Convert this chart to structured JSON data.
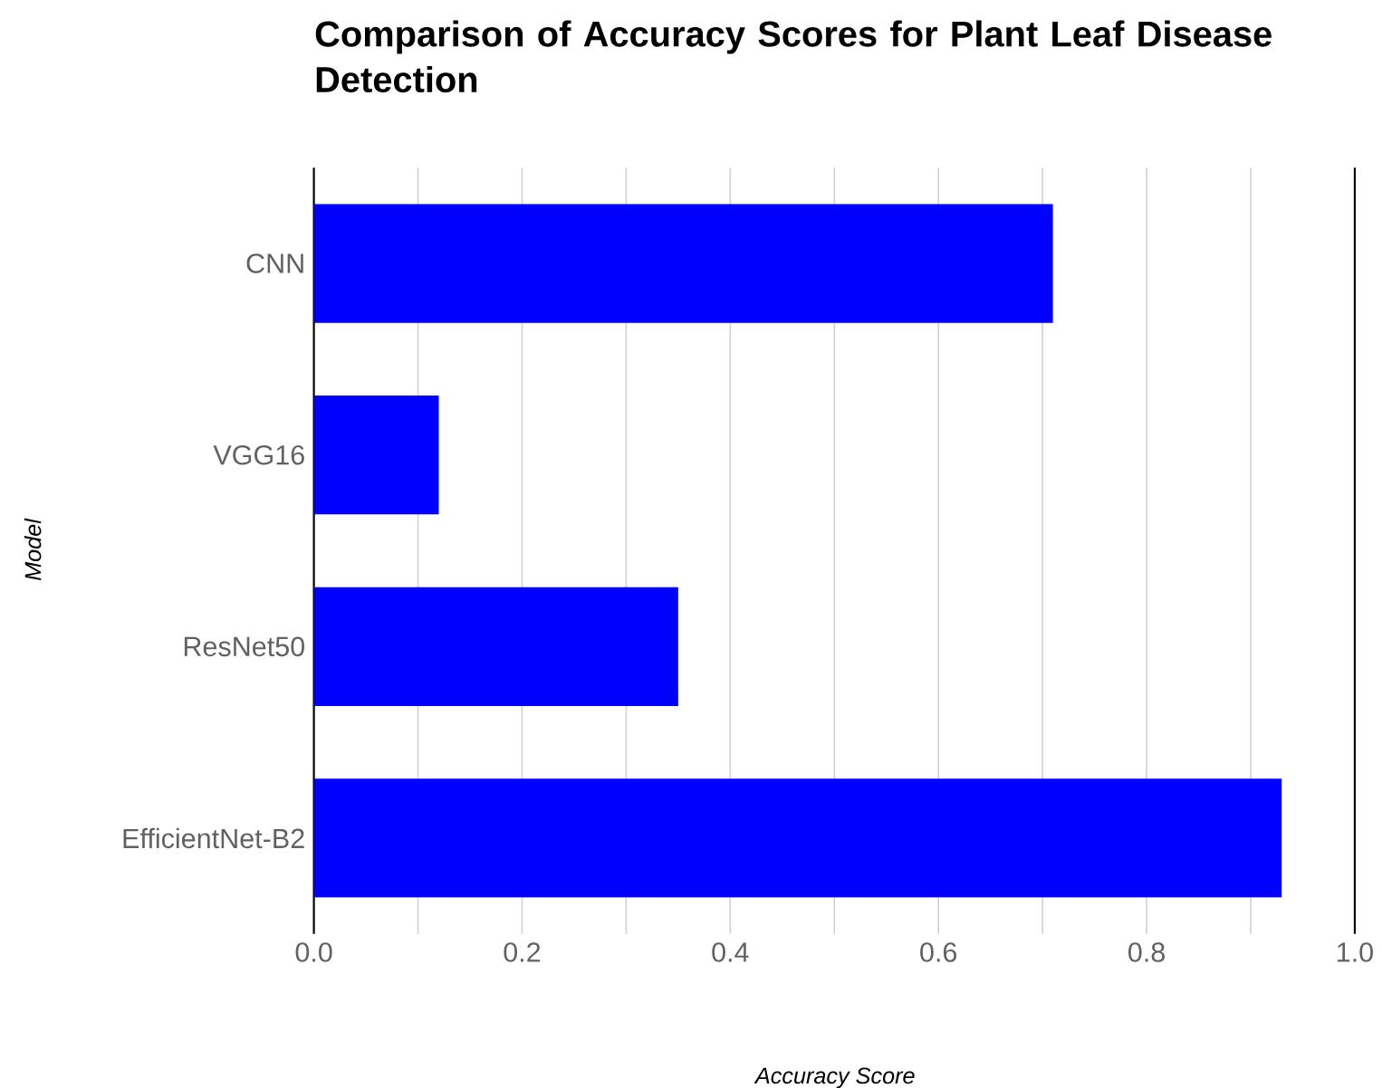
{
  "chart_data": {
    "type": "bar",
    "orientation": "horizontal",
    "title": "Comparison of Accuracy Scores for Plant Leaf Disease Detection",
    "xlabel": "Accuracy Score",
    "ylabel": "Model",
    "categories": [
      "CNN",
      "VGG16",
      "ResNet50",
      "EfficientNet-B2"
    ],
    "values": [
      0.71,
      0.12,
      0.35,
      0.93
    ],
    "color": "#0000ff",
    "xlim": [
      0,
      1
    ],
    "xticks": [
      {
        "value": 0,
        "label": "0.0"
      },
      {
        "value": 0.1,
        "label": null
      },
      {
        "value": 0.2,
        "label": "0.2"
      },
      {
        "value": 0.3,
        "label": null
      },
      {
        "value": 0.4,
        "label": "0.4"
      },
      {
        "value": 0.5,
        "label": null
      },
      {
        "value": 0.6,
        "label": "0.6"
      },
      {
        "value": 0.7,
        "label": null
      },
      {
        "value": 0.8,
        "label": "0.8"
      },
      {
        "value": 0.9,
        "label": null
      },
      {
        "value": 1,
        "label": "1.0"
      }
    ],
    "grid": "x"
  }
}
